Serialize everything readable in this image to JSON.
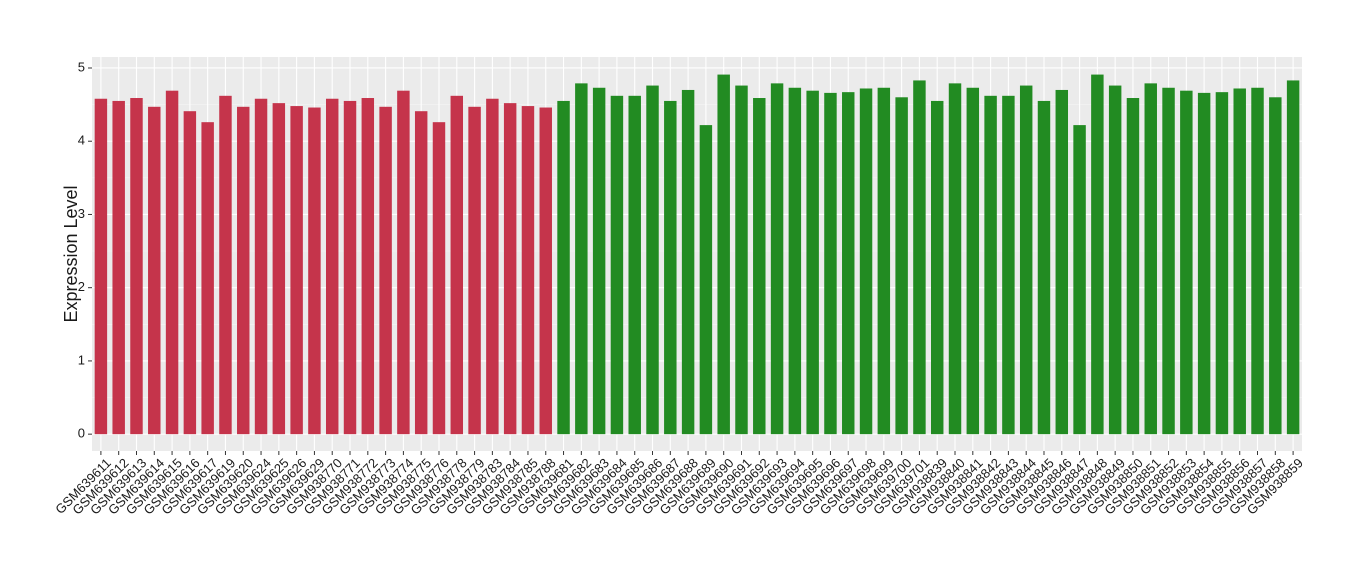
{
  "chart_data": {
    "type": "bar",
    "y_label": "Expression Level",
    "categories": [
      "GSM639611",
      "GSM639612",
      "GSM639613",
      "GSM639614",
      "GSM639615",
      "GSM639616",
      "GSM639617",
      "GSM639619",
      "GSM639620",
      "GSM639624",
      "GSM639625",
      "GSM639626",
      "GSM639629",
      "GSM938770",
      "GSM938771",
      "GSM938772",
      "GSM938773",
      "GSM938774",
      "GSM938775",
      "GSM938776",
      "GSM938778",
      "GSM938779",
      "GSM938783",
      "GSM938784",
      "GSM938785",
      "GSM938788",
      "GSM639681",
      "GSM639682",
      "GSM639683",
      "GSM639684",
      "GSM639685",
      "GSM639686",
      "GSM639687",
      "GSM639688",
      "GSM639689",
      "GSM639690",
      "GSM639691",
      "GSM639692",
      "GSM639693",
      "GSM639694",
      "GSM639695",
      "GSM639696",
      "GSM639697",
      "GSM639698",
      "GSM639699",
      "GSM639700",
      "GSM639701",
      "GSM938839",
      "GSM938840",
      "GSM938841",
      "GSM938842",
      "GSM938843",
      "GSM938844",
      "GSM938845",
      "GSM938846",
      "GSM938847",
      "GSM938848",
      "GSM938849",
      "GSM938850",
      "GSM938851",
      "GSM938852",
      "GSM938853",
      "GSM938854",
      "GSM938855",
      "GSM938856",
      "GSM938857",
      "GSM938858",
      "GSM938859"
    ],
    "series": [
      {
        "color": "#c5344b",
        "values": [
          4.58,
          4.55,
          4.59,
          4.47,
          4.69,
          4.41,
          4.26,
          4.62,
          4.47,
          4.58,
          4.52,
          4.48,
          4.46,
          4.58,
          4.55,
          4.59,
          4.47,
          4.69,
          4.41,
          4.26,
          4.62,
          4.47,
          4.58,
          4.52,
          4.48,
          4.46,
          null,
          null,
          null,
          null,
          null,
          null,
          null,
          null,
          null,
          null,
          null,
          null,
          null,
          null,
          null,
          null,
          null,
          null,
          null,
          null,
          null,
          null,
          null,
          null,
          null,
          null,
          null,
          null,
          null,
          null,
          null,
          null,
          null,
          null,
          null,
          null,
          null,
          null,
          null,
          null,
          null,
          null
        ]
      },
      {
        "color": "#228b22",
        "values": [
          null,
          null,
          null,
          null,
          null,
          null,
          null,
          null,
          null,
          null,
          null,
          null,
          null,
          null,
          null,
          null,
          null,
          null,
          null,
          null,
          null,
          null,
          null,
          null,
          null,
          null,
          4.55,
          4.79,
          4.73,
          4.62,
          4.62,
          4.76,
          4.55,
          4.7,
          4.22,
          4.91,
          4.76,
          4.59,
          4.79,
          4.73,
          4.69,
          4.66,
          4.67,
          4.72,
          4.73,
          4.6,
          4.83,
          4.55,
          4.79,
          4.73,
          4.62,
          4.62,
          4.76,
          4.55,
          4.7,
          4.22,
          4.91,
          4.76,
          4.59,
          4.79,
          4.73,
          4.69,
          4.66,
          4.67,
          4.72,
          4.73,
          4.6,
          4.83
        ]
      }
    ],
    "ylim": [
      -0.23,
      5.15
    ],
    "yticks": [
      0,
      1,
      2,
      3,
      4,
      5
    ],
    "grid": true
  }
}
